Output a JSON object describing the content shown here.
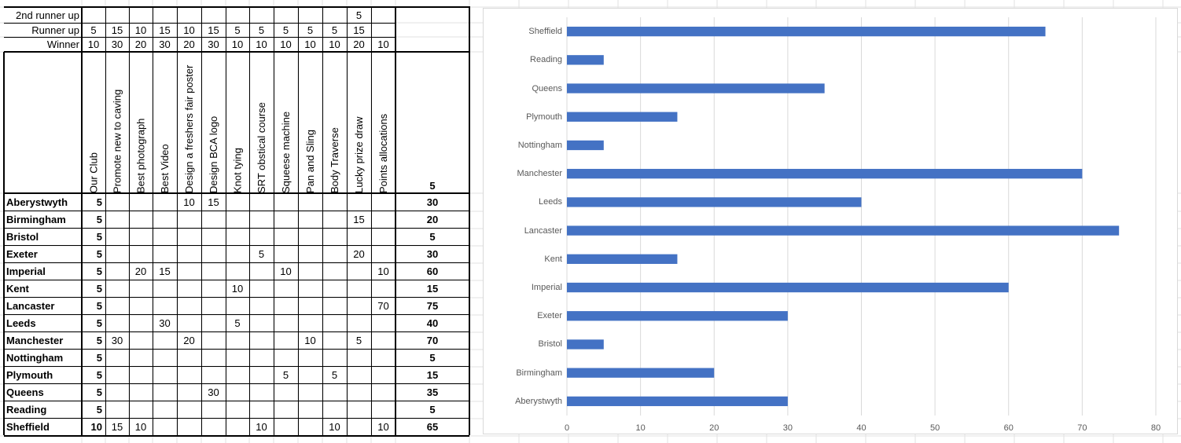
{
  "sheet": {
    "header_rows": [
      {
        "label": "2nd runner up",
        "values": [
          "",
          "",
          "",
          "",
          "",
          "",
          "",
          "",
          "",
          "",
          "",
          "5",
          ""
        ]
      },
      {
        "label": "Runner up",
        "values": [
          "5",
          "15",
          "10",
          "15",
          "10",
          "15",
          "5",
          "5",
          "5",
          "5",
          "5",
          "15",
          ""
        ]
      },
      {
        "label": "Winner",
        "values": [
          "10",
          "30",
          "20",
          "30",
          "20",
          "30",
          "10",
          "10",
          "10",
          "10",
          "10",
          "20",
          "10"
        ]
      }
    ],
    "columns": [
      "Our Club",
      "Promote new to caving",
      "Best photograph",
      "Best Video",
      "Design a freshers fair poster",
      "Design BCA logo",
      "Knot tying",
      "SRT obstical course",
      "Squeese machine",
      "Pan and Sling",
      "Body Traverse",
      "Lucky prize draw",
      "Points allocations"
    ],
    "header_total": "5",
    "rows": [
      {
        "club": "Aberystwyth",
        "values": [
          "5",
          "",
          "",
          "",
          "10",
          "15",
          "",
          "",
          "",
          "",
          "",
          "",
          ""
        ],
        "total": "30"
      },
      {
        "club": "Birmingham",
        "values": [
          "5",
          "",
          "",
          "",
          "",
          "",
          "",
          "",
          "",
          "",
          "",
          "15",
          ""
        ],
        "total": "20"
      },
      {
        "club": "Bristol",
        "values": [
          "5",
          "",
          "",
          "",
          "",
          "",
          "",
          "",
          "",
          "",
          "",
          "",
          ""
        ],
        "total": "5"
      },
      {
        "club": "Exeter",
        "values": [
          "5",
          "",
          "",
          "",
          "",
          "",
          "",
          "5",
          "",
          "",
          "",
          "20",
          ""
        ],
        "total": "30"
      },
      {
        "club": "Imperial",
        "values": [
          "5",
          "",
          "20",
          "15",
          "",
          "",
          "",
          "",
          "10",
          "",
          "",
          "",
          "10"
        ],
        "total": "60"
      },
      {
        "club": "Kent",
        "values": [
          "5",
          "",
          "",
          "",
          "",
          "",
          "10",
          "",
          "",
          "",
          "",
          "",
          ""
        ],
        "total": "15"
      },
      {
        "club": "Lancaster",
        "values": [
          "5",
          "",
          "",
          "",
          "",
          "",
          "",
          "",
          "",
          "",
          "",
          "",
          "70"
        ],
        "total": "75"
      },
      {
        "club": "Leeds",
        "values": [
          "5",
          "",
          "",
          "30",
          "",
          "",
          "5",
          "",
          "",
          "",
          "",
          "",
          ""
        ],
        "total": "40"
      },
      {
        "club": "Manchester",
        "values": [
          "5",
          "30",
          "",
          "",
          "20",
          "",
          "",
          "",
          "",
          "10",
          "",
          "5",
          ""
        ],
        "total": "70"
      },
      {
        "club": "Nottingham",
        "values": [
          "5",
          "",
          "",
          "",
          "",
          "",
          "",
          "",
          "",
          "",
          "",
          "",
          ""
        ],
        "total": "5"
      },
      {
        "club": "Plymouth",
        "values": [
          "5",
          "",
          "",
          "",
          "",
          "",
          "",
          "",
          "5",
          "",
          "5",
          "",
          ""
        ],
        "total": "15"
      },
      {
        "club": "Queens",
        "values": [
          "5",
          "",
          "",
          "",
          "",
          "30",
          "",
          "",
          "",
          "",
          "",
          "",
          ""
        ],
        "total": "35"
      },
      {
        "club": "Reading",
        "values": [
          "5",
          "",
          "",
          "",
          "",
          "",
          "",
          "",
          "",
          "",
          "",
          "",
          ""
        ],
        "total": "5"
      },
      {
        "club": "Sheffield",
        "values": [
          "10",
          "15",
          "10",
          "",
          "",
          "",
          "",
          "10",
          "",
          "",
          "10",
          "",
          "10"
        ],
        "total": "65"
      }
    ]
  },
  "chart_data": {
    "type": "bar",
    "orientation": "horizontal",
    "categories": [
      "Aberystwyth",
      "Birmingham",
      "Bristol",
      "Exeter",
      "Imperial",
      "Kent",
      "Lancaster",
      "Leeds",
      "Manchester",
      "Nottingham",
      "Plymouth",
      "Queens",
      "Reading",
      "Sheffield"
    ],
    "values": [
      30,
      20,
      5,
      30,
      60,
      15,
      75,
      40,
      70,
      5,
      15,
      35,
      5,
      65
    ],
    "xlim": [
      0,
      80
    ],
    "xticks": [
      "0",
      "10",
      "20",
      "30",
      "40",
      "50",
      "60",
      "70",
      "80"
    ],
    "grid": true,
    "bar_color": "#4472C4"
  }
}
